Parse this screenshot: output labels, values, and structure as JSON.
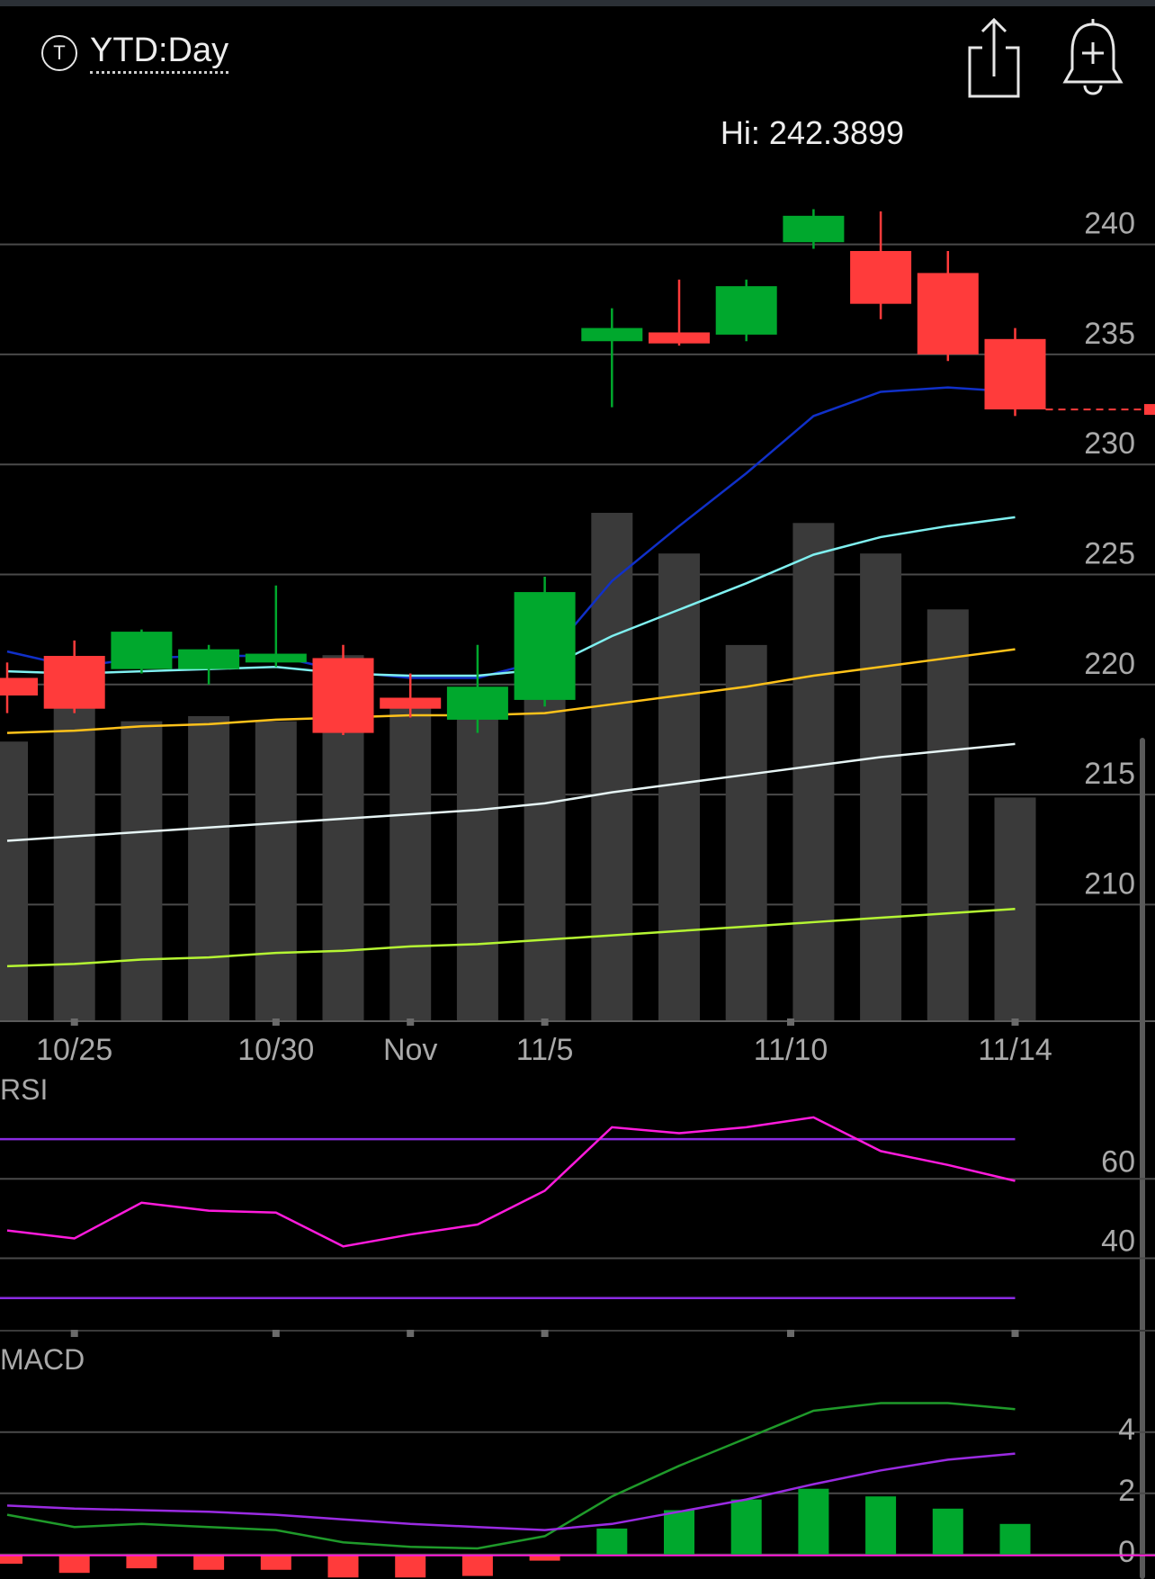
{
  "header": {
    "period_icon_letter": "T",
    "period_label": "YTD:Day",
    "icons": [
      "share-icon",
      "add-alert-bell-icon"
    ]
  },
  "colors": {
    "up": "#00a82d",
    "down": "#ff3b3b",
    "volume": "#3a3a3a",
    "ma1": "#1030c8",
    "ma2": "#7ff0f0",
    "ma3": "#ffc21a",
    "ma4": "#e6f4f4",
    "ma5": "#b5f533",
    "rsi": "#ff1bdc",
    "rsi_band": "#8a2be2",
    "macd": "#1f9a2a",
    "signal": "#9a2be2",
    "grid": "#4a4a4a",
    "last_price": "#ff3b3b"
  },
  "chart_data": [
    {
      "type": "candlestick",
      "panel": "price",
      "hi_label": "Hi: 242.3899",
      "ylim": [
        204.7,
        246.2
      ],
      "yticks": [
        240,
        235,
        230,
        225,
        220,
        215,
        210
      ],
      "xtick_labels": [
        {
          "index": 1,
          "label": "10/25"
        },
        {
          "index": 4,
          "label": "10/30"
        },
        {
          "index": 6,
          "label": "Nov"
        },
        {
          "index": 8,
          "label": "11/5"
        },
        {
          "index": 11.66,
          "label": "11/10"
        },
        {
          "index": 15,
          "label": "11/14"
        }
      ],
      "candles": [
        {
          "o": 220.3,
          "h": 221.0,
          "l": 218.7,
          "c": 219.5
        },
        {
          "o": 221.3,
          "h": 222.0,
          "l": 218.7,
          "c": 218.9
        },
        {
          "o": 220.7,
          "h": 222.5,
          "l": 220.5,
          "c": 222.4
        },
        {
          "o": 220.7,
          "h": 221.8,
          "l": 220.0,
          "c": 221.6
        },
        {
          "o": 221.0,
          "h": 224.5,
          "l": 220.8,
          "c": 221.4
        },
        {
          "o": 221.2,
          "h": 221.8,
          "l": 217.7,
          "c": 217.8
        },
        {
          "o": 219.4,
          "h": 220.5,
          "l": 218.5,
          "c": 218.9
        },
        {
          "o": 218.4,
          "h": 221.8,
          "l": 217.8,
          "c": 219.9
        },
        {
          "o": 219.3,
          "h": 224.9,
          "l": 219.0,
          "c": 224.2
        },
        {
          "o": 235.6,
          "h": 237.1,
          "l": 232.6,
          "c": 236.2
        },
        {
          "o": 236.0,
          "h": 238.4,
          "l": 235.4,
          "c": 235.5
        },
        {
          "o": 235.9,
          "h": 238.4,
          "l": 235.6,
          "c": 238.1
        },
        {
          "o": 240.1,
          "h": 241.6,
          "l": 239.8,
          "c": 241.3
        },
        {
          "o": 239.7,
          "h": 241.5,
          "l": 236.6,
          "c": 237.3
        },
        {
          "o": 238.7,
          "h": 239.7,
          "l": 234.7,
          "c": 235.0
        },
        {
          "o": 235.7,
          "h": 236.2,
          "l": 232.2,
          "c": 232.5
        }
      ],
      "volume_rel": [
        0.55,
        0.71,
        0.59,
        0.6,
        0.59,
        0.72,
        0.63,
        0.61,
        0.79,
        1.0,
        0.92,
        0.74,
        0.98,
        0.92,
        0.81,
        0.44
      ],
      "moving_averages": [
        {
          "key": "ma1",
          "values": [
            221.5,
            220.8,
            221.2,
            221.3,
            221.3,
            220.6,
            220.3,
            220.3,
            221.1,
            224.7,
            227.2,
            229.6,
            232.2,
            233.3,
            233.5,
            233.3
          ]
        },
        {
          "key": "ma2",
          "values": [
            220.6,
            220.5,
            220.6,
            220.7,
            220.8,
            220.5,
            220.4,
            220.4,
            220.7,
            222.2,
            223.4,
            224.6,
            225.9,
            226.7,
            227.2,
            227.6
          ]
        },
        {
          "key": "ma3",
          "values": [
            217.8,
            217.9,
            218.1,
            218.2,
            218.4,
            218.5,
            218.6,
            218.6,
            218.7,
            219.1,
            219.5,
            219.9,
            220.4,
            220.8,
            221.2,
            221.6
          ]
        },
        {
          "key": "ma4",
          "values": [
            212.9,
            213.1,
            213.3,
            213.5,
            213.7,
            213.9,
            214.1,
            214.3,
            214.6,
            215.1,
            215.5,
            215.9,
            216.3,
            216.7,
            217.0,
            217.3
          ]
        },
        {
          "key": "ma5",
          "values": [
            207.2,
            207.3,
            207.5,
            207.6,
            207.8,
            207.9,
            208.1,
            208.2,
            208.4,
            208.6,
            208.8,
            209.0,
            209.2,
            209.4,
            209.6,
            209.8
          ]
        }
      ],
      "last_price": 232.5
    },
    {
      "type": "line",
      "panel": "rsi",
      "title": "RSI",
      "ylim": [
        22,
        80
      ],
      "yticks": [
        60,
        40
      ],
      "bands": [
        70,
        30
      ],
      "values": [
        47,
        45,
        54,
        52,
        51.5,
        43,
        46,
        48.5,
        57,
        73,
        71.5,
        73,
        75.5,
        67,
        63.5,
        59.5
      ]
    },
    {
      "type": "bar+line",
      "panel": "macd",
      "title": "MACD",
      "ylim": [
        -0.8,
        6.7
      ],
      "yticks": [
        4,
        2,
        0
      ],
      "macd": [
        1.3,
        0.9,
        1.0,
        0.9,
        0.8,
        0.4,
        0.25,
        0.2,
        0.6,
        1.9,
        2.9,
        3.8,
        4.7,
        4.95,
        4.95,
        4.75
      ],
      "signal": [
        1.6,
        1.5,
        1.45,
        1.4,
        1.3,
        1.15,
        1.0,
        0.9,
        0.8,
        1.0,
        1.4,
        1.8,
        2.3,
        2.75,
        3.1,
        3.3
      ],
      "histogram": [
        -0.3,
        -0.6,
        -0.45,
        -0.5,
        -0.5,
        -0.75,
        -0.75,
        -0.7,
        -0.2,
        0.85,
        1.45,
        1.8,
        2.15,
        1.9,
        1.5,
        1.0
      ]
    }
  ]
}
